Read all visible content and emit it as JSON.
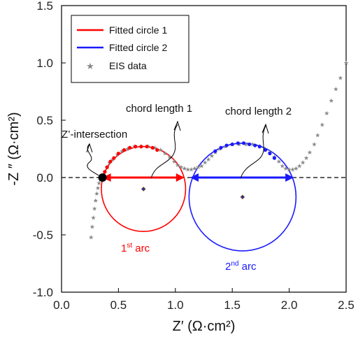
{
  "chart_data": {
    "type": "scatter",
    "xlabel": "Z′ (Ω·cm²)",
    "ylabel": "-Z ″ (Ω·cm²)",
    "xlim": [
      0.0,
      2.5
    ],
    "ylim": [
      -1.0,
      1.5
    ],
    "x_ticks": [
      "0.0",
      "0.5",
      "1.0",
      "1.5",
      "2.0",
      "2.5"
    ],
    "y_ticks": [
      "1.5",
      "1.0",
      "0.5",
      "0.0",
      "-0.5",
      "-1.0"
    ],
    "grid": false,
    "legend_position": "top-left",
    "legend": [
      {
        "label": "Fitted circle 1",
        "color": "#ff0000",
        "kind": "line"
      },
      {
        "label": "Fitted circle 2",
        "color": "#1a1aff",
        "kind": "line"
      },
      {
        "label": "EIS data",
        "color": "#888888",
        "kind": "star"
      }
    ],
    "circles": [
      {
        "name": "Fitted circle 1",
        "center": [
          0.72,
          -0.1
        ],
        "radius": 0.37,
        "color": "#ff0000"
      },
      {
        "name": "Fitted circle 2",
        "center": [
          1.59,
          -0.17
        ],
        "radius": 0.47,
        "color": "#1a1aff"
      }
    ],
    "eis_points": [
      [
        0.26,
        -0.52
      ],
      [
        0.27,
        -0.43
      ],
      [
        0.28,
        -0.35
      ],
      [
        0.29,
        -0.27
      ],
      [
        0.3,
        -0.2
      ],
      [
        0.31,
        -0.14
      ],
      [
        0.32,
        -0.09
      ],
      [
        0.33,
        -0.05
      ],
      [
        0.34,
        -0.02
      ],
      [
        0.36,
        0.0
      ],
      [
        0.38,
        0.05
      ],
      [
        0.4,
        0.09
      ],
      [
        0.42,
        0.13
      ],
      [
        0.45,
        0.16
      ],
      [
        0.49,
        0.2
      ],
      [
        0.53,
        0.23
      ],
      [
        0.58,
        0.25
      ],
      [
        0.64,
        0.27
      ],
      [
        0.7,
        0.27
      ],
      [
        0.76,
        0.27
      ],
      [
        0.82,
        0.26
      ],
      [
        0.87,
        0.24
      ],
      [
        0.91,
        0.21
      ],
      [
        0.95,
        0.18
      ],
      [
        0.99,
        0.14
      ],
      [
        1.02,
        0.11
      ],
      [
        1.05,
        0.09
      ],
      [
        1.08,
        0.08
      ],
      [
        1.11,
        0.07
      ],
      [
        1.14,
        0.07
      ],
      [
        1.17,
        0.08
      ],
      [
        1.2,
        0.09
      ],
      [
        1.23,
        0.1
      ],
      [
        1.26,
        0.13
      ],
      [
        1.29,
        0.16
      ],
      [
        1.32,
        0.19
      ],
      [
        1.35,
        0.22
      ],
      [
        1.39,
        0.25
      ],
      [
        1.44,
        0.27
      ],
      [
        1.5,
        0.29
      ],
      [
        1.56,
        0.29
      ],
      [
        1.62,
        0.29
      ],
      [
        1.68,
        0.29
      ],
      [
        1.74,
        0.27
      ],
      [
        1.79,
        0.25
      ],
      [
        1.83,
        0.22
      ],
      [
        1.87,
        0.18
      ],
      [
        1.91,
        0.14
      ],
      [
        1.94,
        0.1
      ],
      [
        1.97,
        0.08
      ],
      [
        2.0,
        0.07
      ],
      [
        2.03,
        0.07
      ],
      [
        2.06,
        0.08
      ],
      [
        2.09,
        0.1
      ],
      [
        2.12,
        0.13
      ],
      [
        2.15,
        0.17
      ],
      [
        2.18,
        0.22
      ],
      [
        2.22,
        0.29
      ],
      [
        2.25,
        0.37
      ],
      [
        2.29,
        0.46
      ],
      [
        2.33,
        0.56
      ],
      [
        2.37,
        0.67
      ],
      [
        2.41,
        0.77
      ],
      [
        2.45,
        0.87
      ],
      [
        2.5,
        1.0
      ]
    ],
    "fitted_points_1": [
      [
        0.36,
        0.0
      ],
      [
        0.38,
        0.05
      ],
      [
        0.4,
        0.09
      ],
      [
        0.43,
        0.14
      ],
      [
        0.46,
        0.17
      ],
      [
        0.5,
        0.21
      ],
      [
        0.55,
        0.24
      ],
      [
        0.6,
        0.26
      ],
      [
        0.65,
        0.27
      ],
      [
        0.7,
        0.27
      ],
      [
        0.75,
        0.27
      ],
      [
        0.8,
        0.26
      ],
      [
        0.84,
        0.24
      ]
    ],
    "fitted_points_2": [
      [
        1.35,
        0.23
      ],
      [
        1.4,
        0.26
      ],
      [
        1.45,
        0.28
      ],
      [
        1.5,
        0.29
      ],
      [
        1.55,
        0.3
      ],
      [
        1.6,
        0.3
      ],
      [
        1.65,
        0.29
      ],
      [
        1.7,
        0.28
      ],
      [
        1.74,
        0.27
      ],
      [
        1.79,
        0.24
      ],
      [
        1.83,
        0.21
      ],
      [
        1.87,
        0.17
      ]
    ],
    "chords": [
      {
        "x_from": 0.36,
        "x_to": 1.08,
        "y": 0.0,
        "color": "#ff0000"
      },
      {
        "x_from": 1.13,
        "x_to": 2.04,
        "y": 0.0,
        "color": "#1a1aff"
      }
    ],
    "annotations": {
      "chord1": "chord length 1",
      "chord2": "chord length 2",
      "z_intersection": "Z’-intersection",
      "arc1_base": "1",
      "arc1_sup": "st",
      "arc1_tail": " arc",
      "arc2_base": "2",
      "arc2_sup": "nd",
      "arc2_tail": " arc"
    },
    "intersection_point": [
      0.36,
      0.0
    ]
  }
}
